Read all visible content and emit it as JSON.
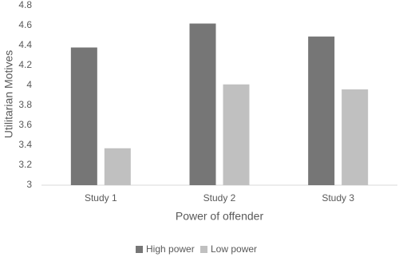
{
  "chart_data": {
    "type": "bar",
    "x_label": "Power of offender",
    "y_label": "Utilitarian Motives",
    "categories": [
      "Study 1",
      "Study 2",
      "Study 3"
    ],
    "series": [
      {
        "name": "High power",
        "color": "#767676",
        "values": [
          4.38,
          4.62,
          4.49
        ]
      },
      {
        "name": "Low power",
        "color": "#c0c0c0",
        "values": [
          3.37,
          4.01,
          3.96
        ]
      }
    ],
    "ylim": [
      3,
      4.8
    ],
    "yticks": [
      3,
      3.2,
      3.4,
      3.6,
      3.8,
      4,
      4.2,
      4.4,
      4.6,
      4.8
    ],
    "grid": false,
    "legend": "bottom"
  }
}
